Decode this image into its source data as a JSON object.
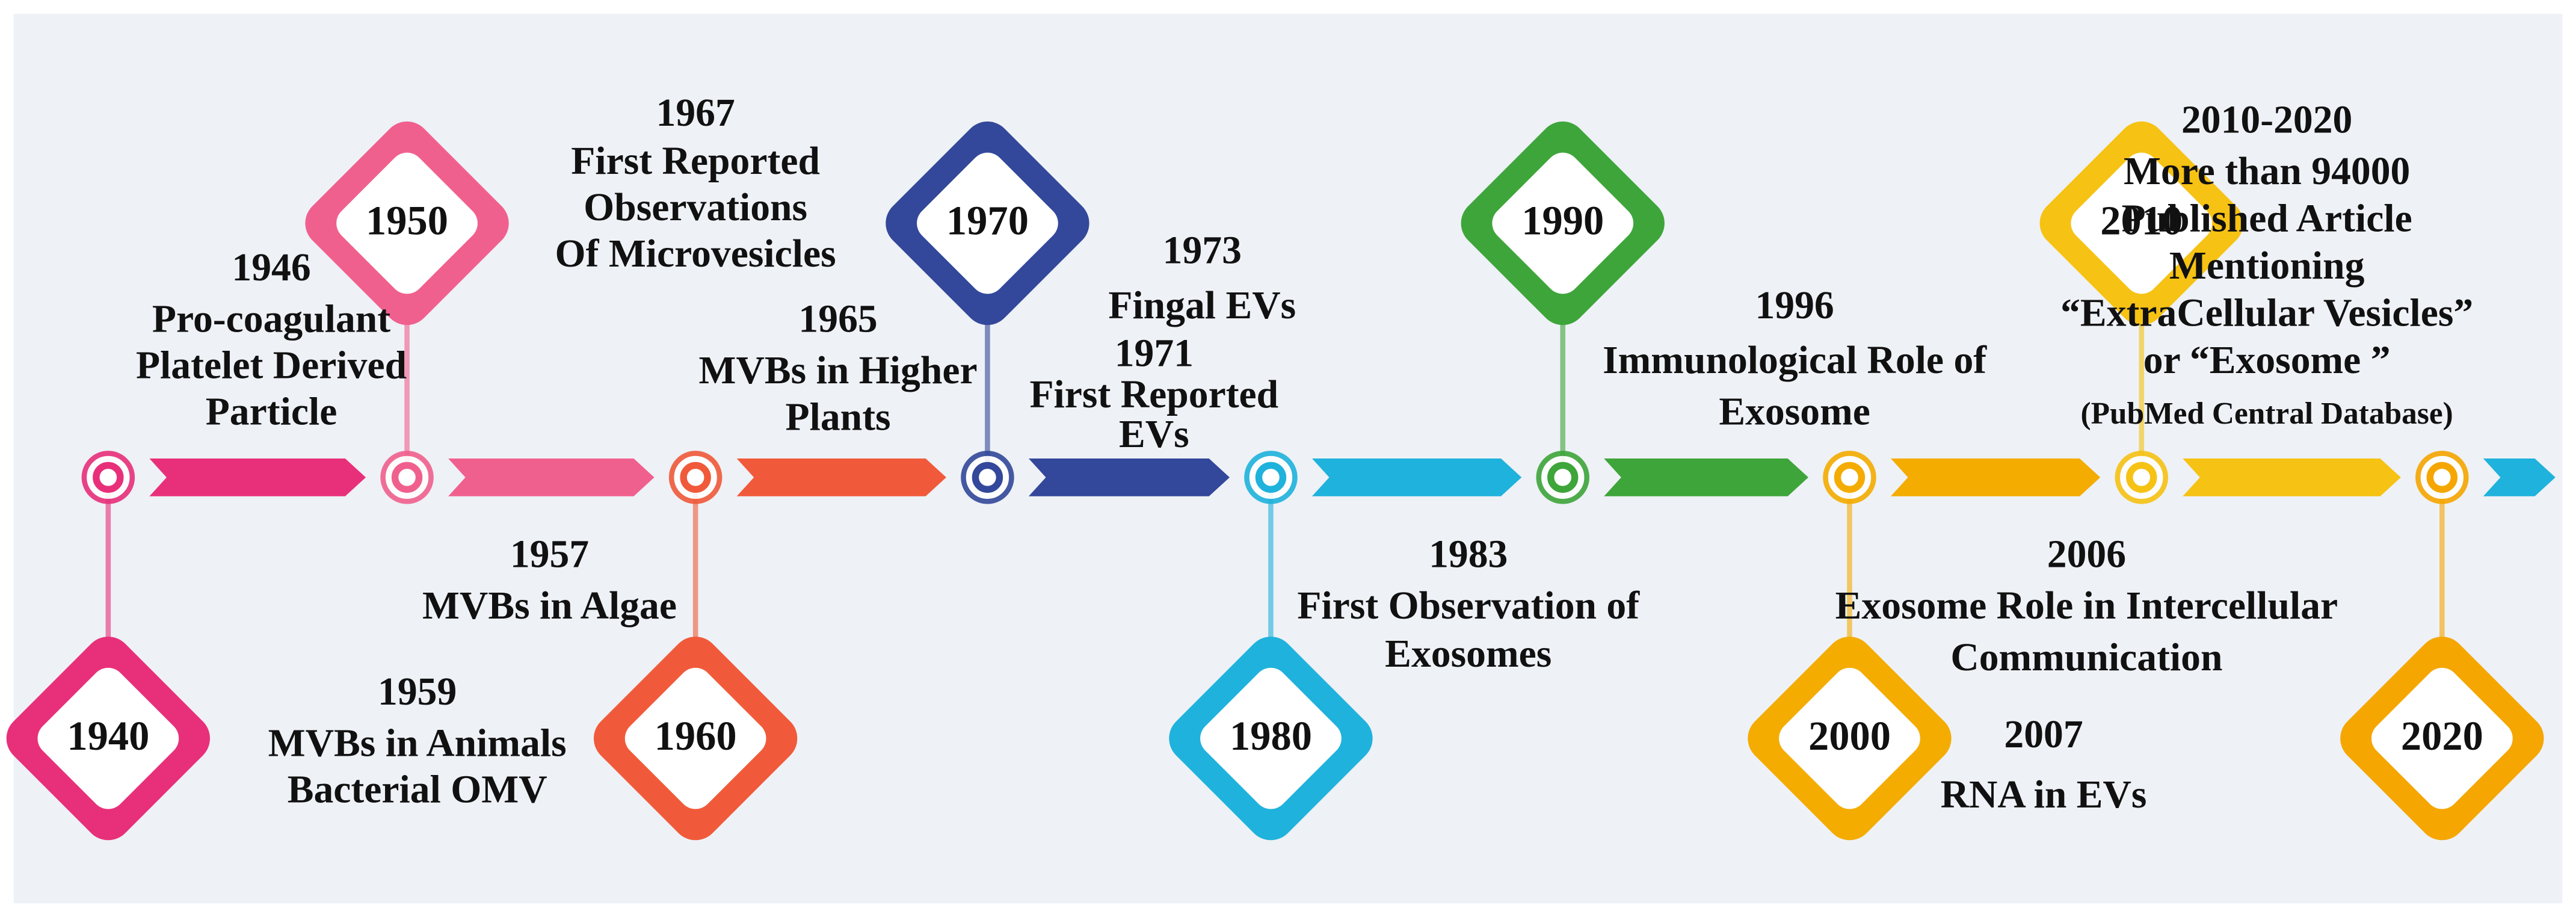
{
  "decades": [
    {
      "label": "1940",
      "color": "#e8307a"
    },
    {
      "label": "1950",
      "color": "#f0608e"
    },
    {
      "label": "1960",
      "color": "#f05a3a"
    },
    {
      "label": "1970",
      "color": "#33489a"
    },
    {
      "label": "1980",
      "color": "#1fb2dc"
    },
    {
      "label": "1990",
      "color": "#3ea53a"
    },
    {
      "label": "2000",
      "color": "#f4ac00"
    },
    {
      "label": "2010",
      "color": "#f6c214"
    },
    {
      "label": "2020",
      "color": "#f5a600"
    }
  ],
  "events": [
    {
      "year": "1946",
      "lines": [
        "Pro-coagulant",
        "Platelet Derived",
        "Particle"
      ]
    },
    {
      "year": "1967",
      "lines": [
        "First Reported",
        "Observations",
        "Of Microvesicles"
      ]
    },
    {
      "year": "1965",
      "lines": [
        "MVBs in Higher",
        "Plants"
      ]
    },
    {
      "year": "1957",
      "lines": [
        "MVBs in Algae"
      ]
    },
    {
      "year": "1959",
      "lines": [
        "MVBs in Animals",
        "Bacterial OMV"
      ]
    },
    {
      "year": "1973",
      "lines": [
        "Fingal  EVs"
      ]
    },
    {
      "year": "1971",
      "lines": [
        "First Reported",
        "EVs"
      ]
    },
    {
      "year": "1983",
      "lines": [
        "First Observation of",
        "Exosomes"
      ]
    },
    {
      "year": "1996",
      "lines": [
        "Immunological Role of",
        "Exosome"
      ]
    },
    {
      "year": "2006",
      "lines": [
        "Exosome Role in Intercellular",
        "Communication"
      ]
    },
    {
      "year": "2007",
      "lines": [
        "RNA in EVs"
      ]
    },
    {
      "year": "2010-2020",
      "lines": [
        "More than 94000",
        "Published Article",
        "Mentioning",
        "“ExtraCellular Vesicles”",
        "or “Exosome ”",
        "(PubMed Central Database)"
      ]
    }
  ]
}
